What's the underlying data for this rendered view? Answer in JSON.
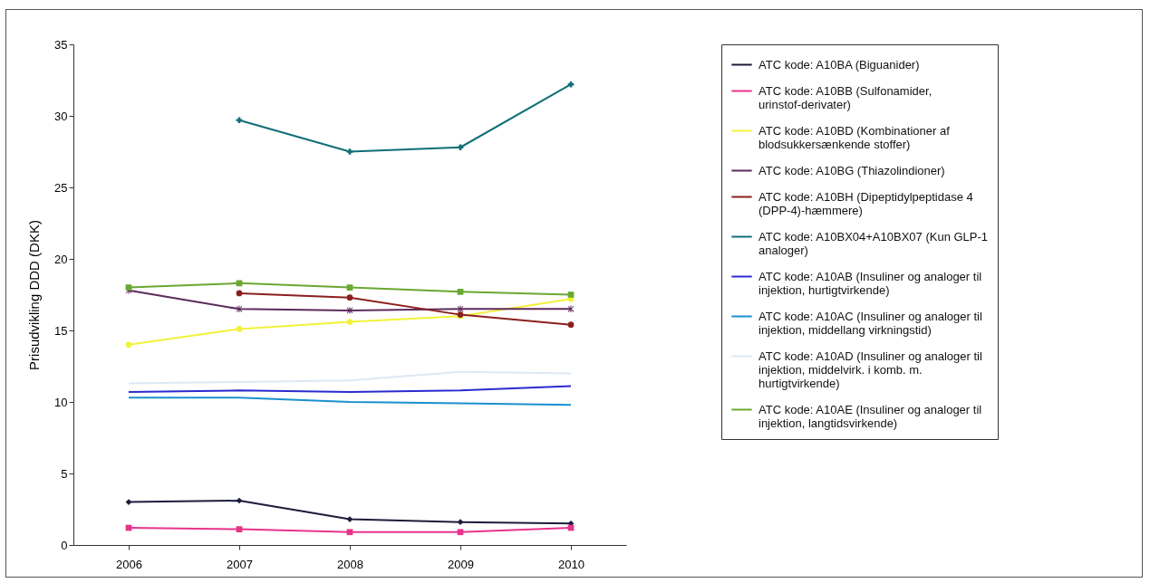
{
  "chart_data": {
    "type": "line",
    "ylabel": "Prisudvikling DDD (DKK)",
    "categories": [
      "2006",
      "2007",
      "2008",
      "2009",
      "2010"
    ],
    "ylim": [
      0,
      35
    ],
    "yticks": [
      0,
      5,
      10,
      15,
      20,
      25,
      30,
      35
    ],
    "grid": false,
    "legend": "right",
    "series": [
      {
        "name": "ATC kode: A10BA (Biguanider)",
        "color": "#1c1c3c",
        "marker": "diamond",
        "values": [
          3.0,
          3.1,
          1.8,
          1.6,
          1.5
        ]
      },
      {
        "name": "ATC kode: A10BB (Sulfonamider, urinstof-derivater)",
        "color": "#e8338a",
        "marker": "square",
        "values": [
          1.2,
          1.1,
          0.9,
          0.9,
          1.2
        ]
      },
      {
        "name": "ATC kode: A10BD (Kombinationer af blodsukkersænkende stoffer)",
        "color": "#f2f23a",
        "marker": "circle",
        "values": [
          14.0,
          15.1,
          15.6,
          16.0,
          17.2
        ]
      },
      {
        "name": "ATC kode: A10BG (Thiazolindioner)",
        "color": "#5c2a5c",
        "marker": "star",
        "values": [
          17.8,
          16.5,
          16.4,
          16.5,
          16.5
        ]
      },
      {
        "name": "ATC kode: A10BH (Dipeptidylpeptidase 4 (DPP-4)-hæmmere)",
        "color": "#8b1f1f",
        "marker": "circle",
        "values": [
          null,
          17.6,
          17.3,
          16.1,
          15.4
        ]
      },
      {
        "name": "ATC kode: A10BX04+A10BX07 (Kun GLP-1 analoger)",
        "color": "#106e78",
        "marker": "cross",
        "values": [
          null,
          29.7,
          27.5,
          27.8,
          32.2
        ]
      },
      {
        "name": "ATC kode: A10AB (Insuliner og analoger til injektion, hurtigtvirkende)",
        "color": "#2a2ad0",
        "marker": "none",
        "values": [
          10.7,
          10.8,
          10.7,
          10.8,
          11.1
        ]
      },
      {
        "name": "ATC kode: A10AC (Insuliner og analoger til injektion, middellang virkningstid)",
        "color": "#1a90d0",
        "marker": "none",
        "values": [
          10.3,
          10.3,
          10.0,
          9.9,
          9.8
        ]
      },
      {
        "name": "ATC kode: A10AD (Insuliner og analoger til injektion, middelvirk. i komb. m. hurtigtvirkende)",
        "color": "#dde8f4",
        "marker": "none",
        "values": [
          11.3,
          11.4,
          11.5,
          12.1,
          12.0
        ]
      },
      {
        "name": "ATC kode: A10AE (Insuliner og analoger til injektion, langtidsvirkende)",
        "color": "#6aa832",
        "marker": "square",
        "values": [
          18.0,
          18.3,
          18.0,
          17.7,
          17.5
        ]
      }
    ]
  }
}
